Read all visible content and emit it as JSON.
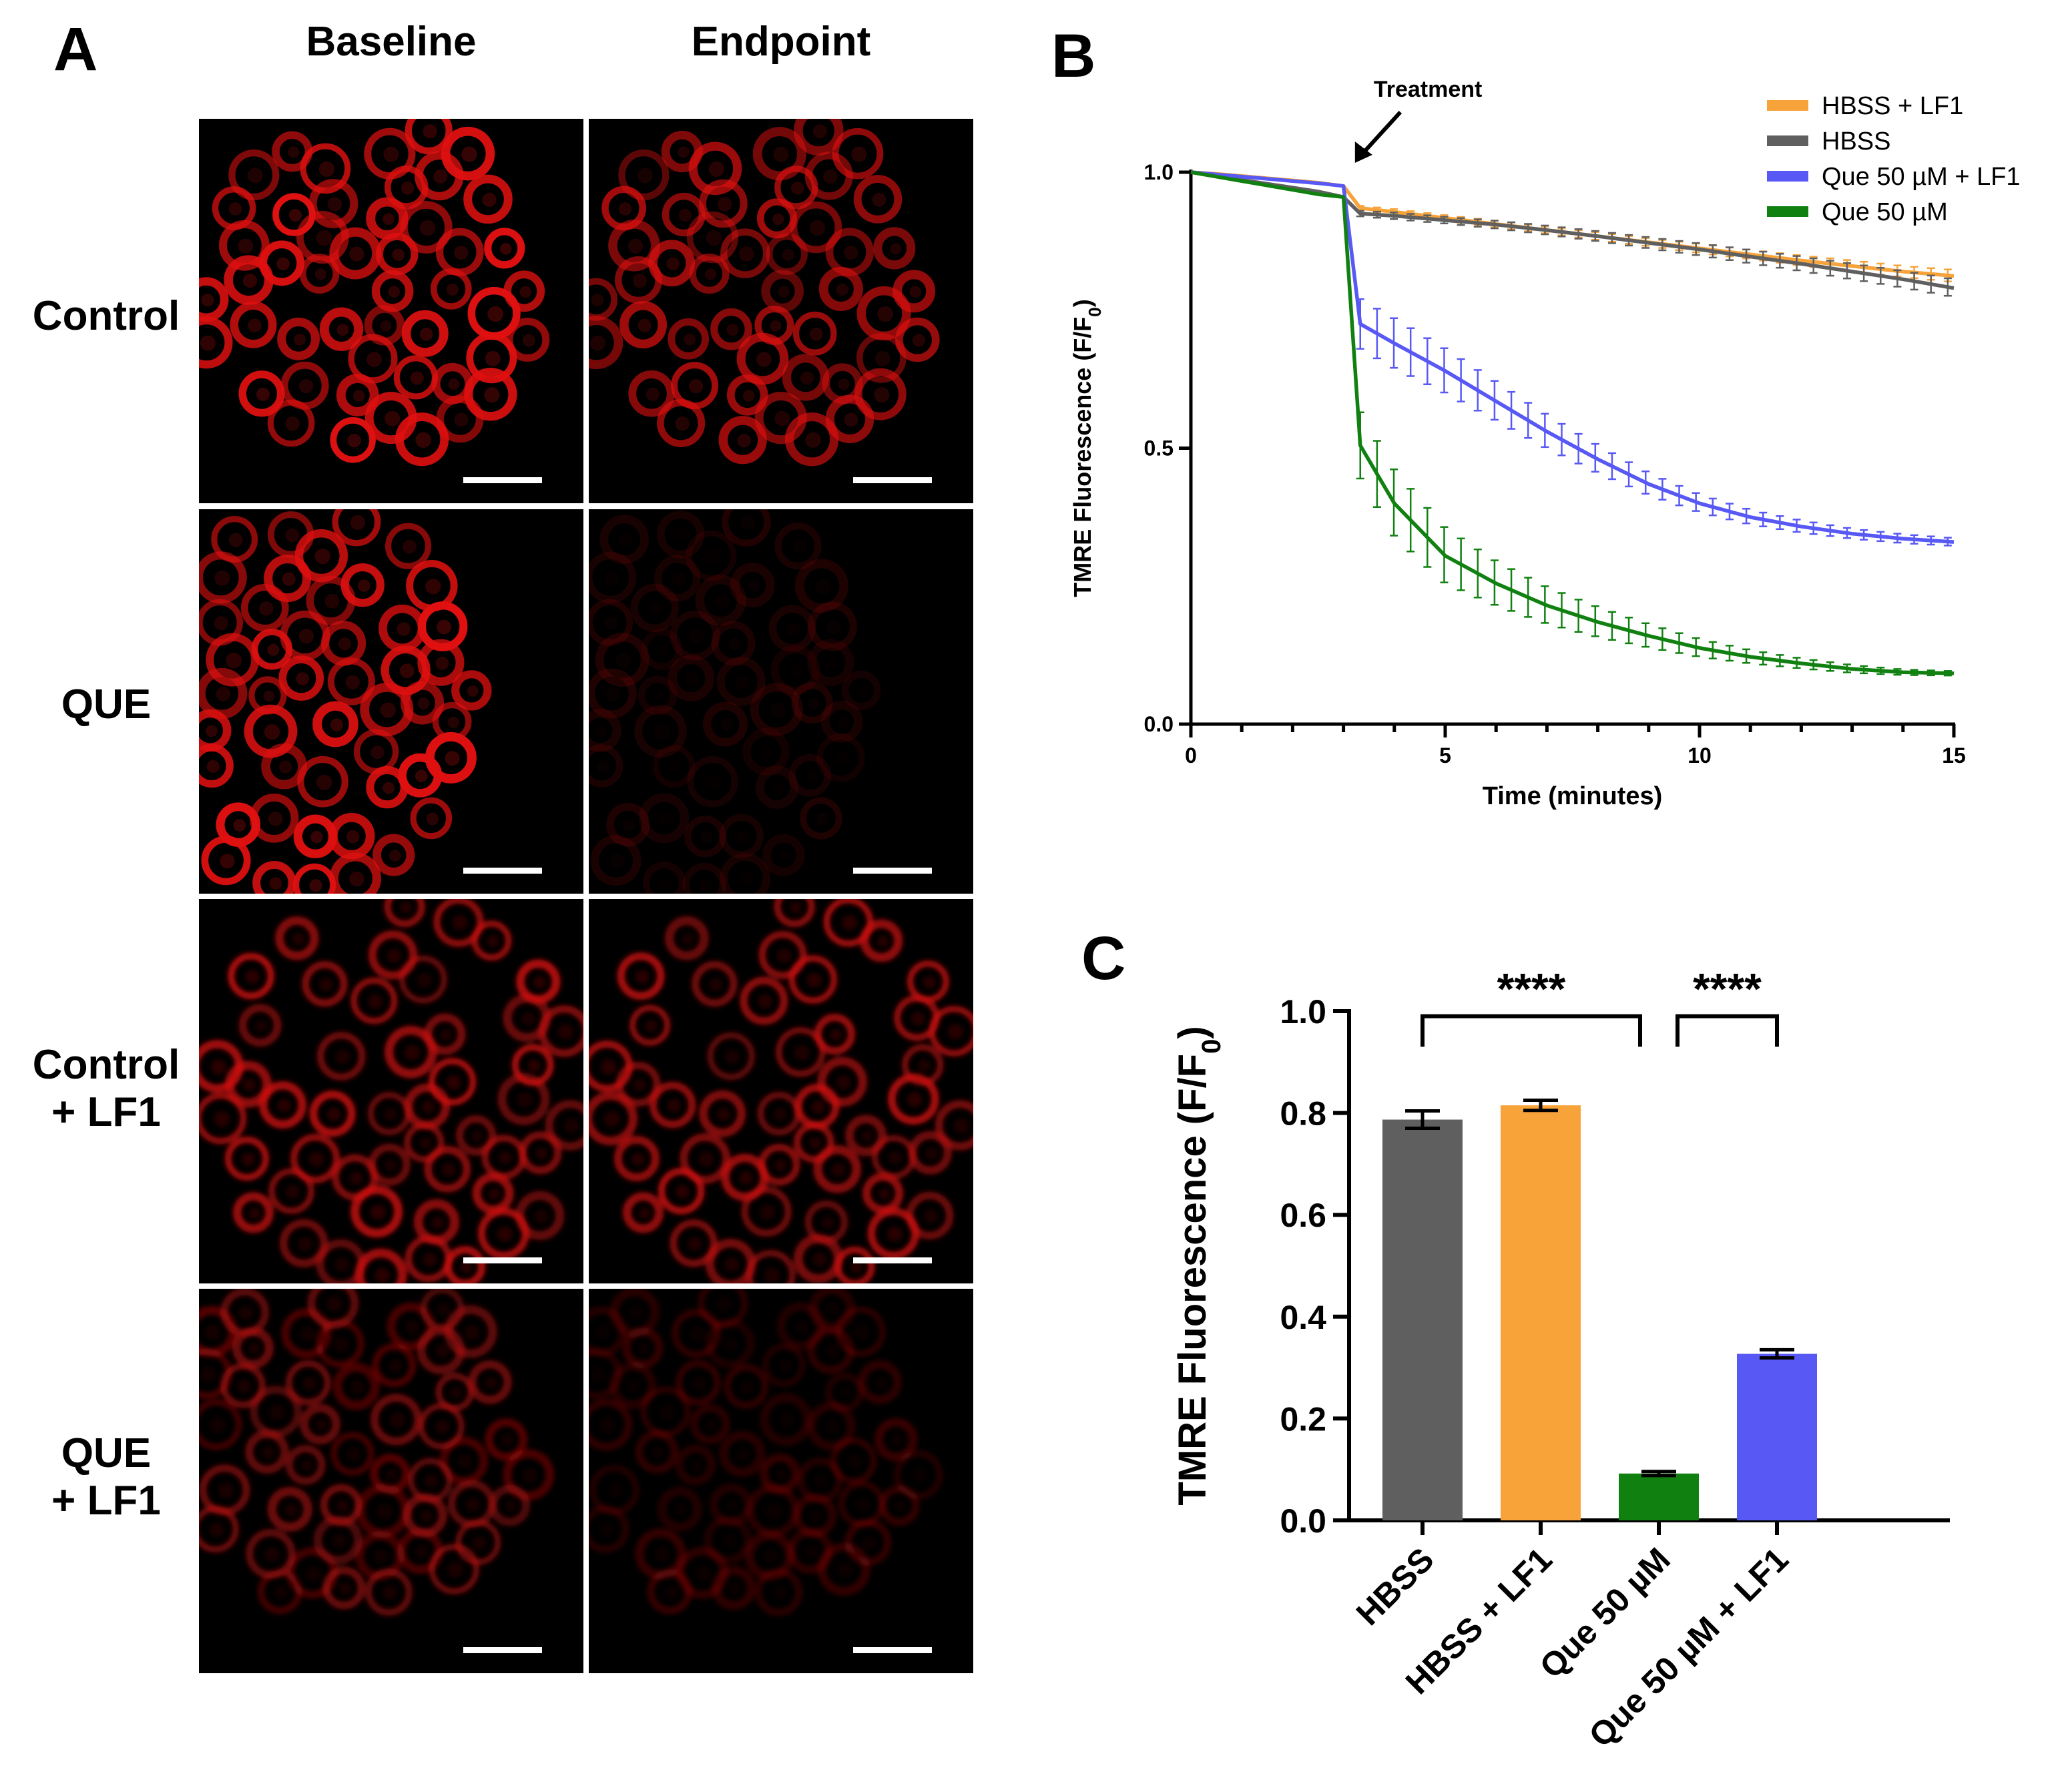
{
  "panels": {
    "a_letter": "A",
    "b_letter": "B",
    "c_letter": "C"
  },
  "panel_a": {
    "columns": [
      "Baseline",
      "Endpoint"
    ],
    "rows": [
      {
        "line1": "Control",
        "line2": ""
      },
      {
        "line1": "QUE",
        "line2": ""
      },
      {
        "line1": "Control",
        "line2": "+ LF1"
      },
      {
        "line1": "QUE",
        "line2": "+ LF1"
      }
    ]
  },
  "colors": {
    "hbss_lf1": "#F7A33A",
    "hbss": "#5F5F5F",
    "que_lf1": "#5858F5",
    "que": "#108010",
    "cell_red": "#E01010"
  },
  "chart_data": [
    {
      "type": "line",
      "panel": "B",
      "xlabel": "Time (minutes)",
      "ylabel": "TMRE Fluorescence (F/F0)",
      "xlim": [
        0,
        15
      ],
      "ylim": [
        0,
        1.0
      ],
      "xticks": [
        "0",
        "5",
        "10",
        "15"
      ],
      "yticks": [
        "0.0",
        "0.5",
        "1.0"
      ],
      "annotation": "Treatment",
      "annotation_x": 3.2,
      "legend_position": "top-right",
      "x": [
        0,
        0.5,
        1,
        1.5,
        2,
        2.5,
        3,
        3.33,
        4,
        5,
        6,
        7,
        8,
        9,
        10,
        11,
        12,
        13,
        14,
        15
      ],
      "series": [
        {
          "name": "HBSS + LF1",
          "color_key": "hbss_lf1",
          "values": [
            1.0,
            0.997,
            0.993,
            0.989,
            0.985,
            0.981,
            0.975,
            0.935,
            0.928,
            0.917,
            0.906,
            0.895,
            0.884,
            0.873,
            0.862,
            0.851,
            0.84,
            0.83,
            0.82,
            0.812
          ],
          "errors": [
            0,
            0.002,
            0.002,
            0.002,
            0.003,
            0.003,
            0.003,
            0.004,
            0.005,
            0.005,
            0.006,
            0.006,
            0.007,
            0.007,
            0.008,
            0.008,
            0.009,
            0.01,
            0.01,
            0.011
          ]
        },
        {
          "name": "HBSS",
          "color_key": "hbss",
          "values": [
            1.0,
            0.993,
            0.986,
            0.979,
            0.972,
            0.965,
            0.955,
            0.925,
            0.921,
            0.913,
            0.905,
            0.895,
            0.884,
            0.872,
            0.86,
            0.847,
            0.834,
            0.82,
            0.806,
            0.79
          ],
          "errors": [
            0,
            0.002,
            0.002,
            0.003,
            0.003,
            0.003,
            0.004,
            0.005,
            0.006,
            0.006,
            0.007,
            0.008,
            0.009,
            0.01,
            0.011,
            0.012,
            0.013,
            0.014,
            0.015,
            0.016
          ]
        },
        {
          "name": "Que 50 µM + LF1",
          "color_key": "que_lf1",
          "values": [
            1.0,
            0.996,
            0.992,
            0.988,
            0.984,
            0.98,
            0.975,
            0.725,
            0.69,
            0.64,
            0.585,
            0.53,
            0.48,
            0.435,
            0.4,
            0.375,
            0.358,
            0.345,
            0.336,
            0.33
          ],
          "errors": [
            0,
            0.003,
            0.004,
            0.005,
            0.006,
            0.006,
            0.007,
            0.045,
            0.045,
            0.04,
            0.035,
            0.03,
            0.025,
            0.02,
            0.016,
            0.013,
            0.011,
            0.009,
            0.008,
            0.007
          ]
        },
        {
          "name": "Que 50 µM",
          "color_key": "que",
          "values": [
            1.0,
            0.992,
            0.984,
            0.976,
            0.968,
            0.96,
            0.955,
            0.505,
            0.4,
            0.305,
            0.255,
            0.215,
            0.185,
            0.16,
            0.138,
            0.122,
            0.11,
            0.1,
            0.094,
            0.092
          ],
          "errors": [
            0,
            0.003,
            0.004,
            0.004,
            0.005,
            0.005,
            0.006,
            0.06,
            0.06,
            0.05,
            0.04,
            0.033,
            0.027,
            0.021,
            0.016,
            0.012,
            0.009,
            0.007,
            0.005,
            0.004
          ]
        }
      ]
    },
    {
      "type": "bar",
      "panel": "C",
      "ylabel": "TMRE Fluorescence (F/F0)",
      "ylim": [
        0,
        1.0
      ],
      "yticks": [
        "0.0",
        "0.2",
        "0.4",
        "0.6",
        "0.8",
        "1.0"
      ],
      "categories": [
        "HBSS",
        "HBSS + LF1",
        "Que 50 µM",
        "Que 50 µM + LF1"
      ],
      "values": [
        0.787,
        0.815,
        0.092,
        0.327
      ],
      "errors": [
        0.017,
        0.01,
        0.004,
        0.008
      ],
      "color_keys": [
        "hbss",
        "hbss_lf1",
        "que",
        "que_lf1"
      ],
      "significance": [
        {
          "from": 0,
          "to": 2,
          "label": "****"
        },
        {
          "from": 2,
          "to": 3,
          "label": "****"
        }
      ]
    }
  ]
}
